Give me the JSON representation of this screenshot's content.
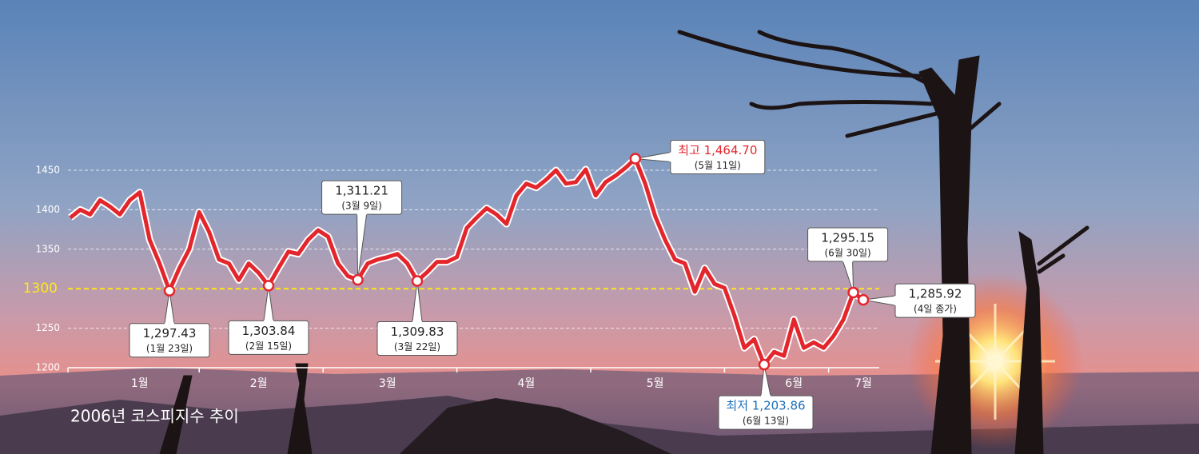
{
  "chart_data": {
    "type": "line",
    "title": "2006년 코스피지수 추이",
    "categories": [
      null,
      null,
      null,
      null,
      null,
      null,
      null,
      "1월",
      null,
      null,
      null,
      null,
      null,
      null,
      null,
      null,
      null,
      null,
      null,
      "2월",
      null,
      null,
      null,
      null,
      null,
      null,
      null,
      null,
      null,
      null,
      null,
      null,
      "3월",
      null,
      null,
      null,
      null,
      null,
      null,
      null,
      null,
      null,
      null,
      null,
      null,
      null,
      "4월",
      null,
      null,
      null,
      null,
      null,
      null,
      null,
      null,
      null,
      null,
      null,
      null,
      "5월",
      null,
      null,
      null,
      null,
      null,
      null,
      null,
      null,
      null,
      null,
      null,
      null,
      null,
      "6월",
      null,
      null,
      null,
      null,
      null,
      null,
      "7월"
    ],
    "series": [
      {
        "name": "코스피지수",
        "color": "#e3262c",
        "values": [
          1390,
          1400,
          1394,
          1412,
          1404,
          1394,
          1412,
          1422,
          1362,
          1332,
          1297.43,
          1326,
          1350,
          1397,
          1372,
          1337,
          1332,
          1311,
          1332,
          1320,
          1303.84,
          1326,
          1347,
          1344,
          1362,
          1374,
          1366,
          1332,
          1316,
          1311.21,
          1332,
          1337,
          1340,
          1344,
          1332,
          1309.83,
          1321,
          1334,
          1334,
          1340,
          1377,
          1390,
          1402,
          1394,
          1382,
          1418,
          1433,
          1428,
          1438,
          1450,
          1433,
          1435,
          1451,
          1418,
          1435,
          1443,
          1453,
          1464.7,
          1433,
          1392,
          1362,
          1337,
          1332,
          1296,
          1326,
          1306,
          1301,
          1266,
          1225,
          1236,
          1203.86,
          1220,
          1215,
          1261,
          1225,
          1232,
          1225,
          1240,
          1261,
          1295.15,
          1285.92
        ],
        "value_labels": [
          null,
          null,
          null,
          null,
          null,
          null,
          null,
          null,
          null,
          null,
          "1,297.43",
          null,
          null,
          null,
          null,
          null,
          null,
          null,
          null,
          null,
          "1,303.84",
          null,
          null,
          null,
          null,
          null,
          null,
          null,
          null,
          "1,311.21",
          null,
          null,
          null,
          null,
          null,
          "1,309.83",
          null,
          null,
          null,
          null,
          null,
          null,
          null,
          null,
          null,
          null,
          null,
          null,
          null,
          null,
          null,
          null,
          null,
          null,
          null,
          null,
          null,
          "최고 1,464.70",
          null,
          null,
          null,
          null,
          null,
          null,
          null,
          null,
          null,
          null,
          null,
          null,
          "최저 1,203.86",
          null,
          null,
          null,
          null,
          null,
          null,
          null,
          null,
          "1,295.15",
          "1,285.92"
        ],
        "label_notes": [
          null,
          null,
          null,
          null,
          null,
          null,
          null,
          null,
          null,
          null,
          "(1월 23일)",
          null,
          null,
          null,
          null,
          null,
          null,
          null,
          null,
          null,
          "(2월 15일)",
          null,
          null,
          null,
          null,
          null,
          null,
          null,
          null,
          "(3월 9일)",
          null,
          null,
          null,
          null,
          null,
          "(3월 22일)",
          null,
          null,
          null,
          null,
          null,
          null,
          null,
          null,
          null,
          null,
          null,
          null,
          null,
          null,
          null,
          null,
          null,
          null,
          null,
          null,
          null,
          "(5월 11일)",
          null,
          null,
          null,
          null,
          null,
          null,
          null,
          null,
          null,
          null,
          null,
          null,
          "(6월 13일)",
          null,
          null,
          null,
          null,
          null,
          null,
          null,
          null,
          "(6월 30일)",
          "(4일 종가)"
        ]
      }
    ],
    "max_color": "#e3262c",
    "min_color": "#1a6fb8",
    "ylim": [
      1200,
      1450
    ],
    "yticks": [
      1200,
      1250,
      1300,
      1350,
      1400,
      1450
    ],
    "reference_line": {
      "value": 1300,
      "color": "#ffe81a"
    },
    "grid": true
  }
}
